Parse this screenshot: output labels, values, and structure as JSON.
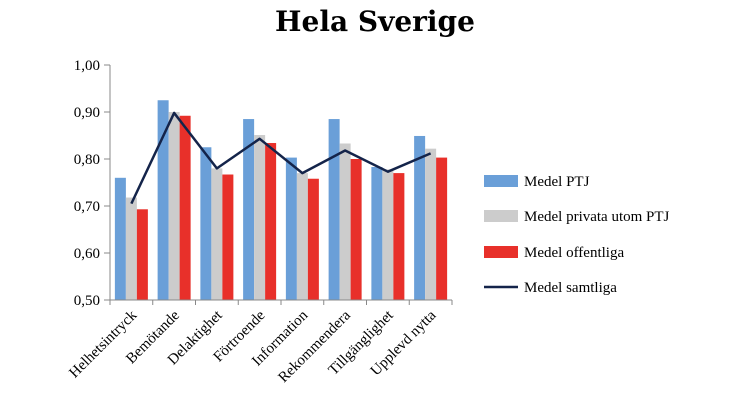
{
  "chart_data": {
    "type": "bar",
    "title": "Hela Sverige",
    "xlabel": "",
    "ylabel": "",
    "ylim": [
      0.5,
      1.0
    ],
    "yticks": [
      "0,50",
      "0,60",
      "0,70",
      "0,80",
      "0,90",
      "1,00"
    ],
    "grid": false,
    "legend_position": "right",
    "categories": [
      "Helhetsintryck",
      "Bemötande",
      "Delaktighet",
      "Förtroende",
      "Information",
      "Rekommendera",
      "Tillgänglighet",
      "Upplevd nytta"
    ],
    "series": [
      {
        "name": "Medel PTJ",
        "type": "bar",
        "color": "#6a9fd8",
        "values": [
          0.76,
          0.925,
          0.825,
          0.885,
          0.803,
          0.885,
          0.783,
          0.849
        ]
      },
      {
        "name": "Medel privata utom PTJ",
        "type": "bar",
        "color": "#cccccc",
        "values": [
          0.718,
          0.9,
          0.78,
          0.851,
          0.77,
          0.833,
          0.778,
          0.822
        ]
      },
      {
        "name": "Medel offentliga",
        "type": "bar",
        "color": "#e8302a",
        "values": [
          0.693,
          0.892,
          0.767,
          0.834,
          0.758,
          0.8,
          0.77,
          0.803
        ]
      },
      {
        "name": "Medel samtliga",
        "type": "line",
        "color": "#14244a",
        "values": [
          0.705,
          0.898,
          0.78,
          0.843,
          0.77,
          0.818,
          0.773,
          0.812
        ]
      }
    ]
  }
}
